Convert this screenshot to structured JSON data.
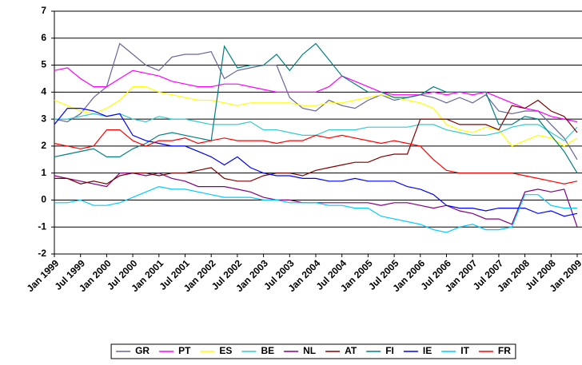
{
  "chart_data": {
    "type": "line",
    "categories": [
      "Jan 1999",
      null,
      "Jul 1999",
      null,
      "Jan 2000",
      null,
      "Jul 2000",
      null,
      "Jan 2001",
      null,
      "Jul 2001",
      null,
      "Jan 2002",
      null,
      "Jul 2002",
      null,
      "Jan 2003",
      null,
      "Jul 2003",
      null,
      "Jan 2004",
      null,
      "Jul 2004",
      null,
      "Jan 2005",
      null,
      "Jul 2005",
      null,
      "Jan 2006",
      null,
      "Jul 2006",
      null,
      "Jan 2007",
      null,
      "Jul 2007",
      null,
      "Jan 2008",
      null,
      "Jul 2008",
      null,
      "Jan 2009"
    ],
    "ylim": [
      -2,
      7
    ],
    "yticks": [
      -2,
      -1,
      0,
      1,
      2,
      3,
      4,
      5,
      6,
      7
    ],
    "grid": true,
    "legend": "bottom",
    "series": [
      {
        "name": "GR",
        "color": "#666699",
        "values": [
          3.0,
          2.9,
          3.2,
          3.8,
          4.2,
          5.8,
          5.4,
          5.0,
          4.8,
          5.3,
          5.4,
          5.4,
          5.5,
          4.5,
          4.8,
          4.9,
          5.0,
          5.0,
          3.8,
          3.4,
          3.3,
          3.7,
          3.5,
          3.4,
          3.7,
          3.9,
          3.7,
          3.8,
          3.9,
          3.8,
          3.6,
          3.8,
          3.6,
          3.9,
          3.3,
          3.2,
          3.3,
          3.3,
          2.8,
          2.3,
          1.5
        ]
      },
      {
        "name": "PT",
        "color": "#ff00ff",
        "values": [
          4.8,
          4.9,
          4.5,
          4.2,
          4.2,
          4.5,
          4.8,
          4.7,
          4.6,
          4.4,
          4.3,
          4.2,
          4.2,
          4.3,
          4.3,
          4.2,
          4.1,
          4.0,
          4.0,
          4.0,
          4.0,
          4.2,
          4.6,
          4.4,
          4.2,
          4.0,
          3.9,
          3.9,
          3.9,
          4.0,
          3.9,
          4.0,
          3.9,
          4.0,
          3.8,
          3.6,
          3.4,
          3.3,
          3.1,
          3.0,
          2.9
        ]
      },
      {
        "name": "ES",
        "color": "#ffff00",
        "values": [
          3.7,
          3.5,
          3.3,
          3.2,
          3.4,
          3.7,
          4.2,
          4.2,
          4.0,
          3.9,
          3.8,
          3.7,
          3.7,
          3.6,
          3.5,
          3.6,
          3.6,
          3.6,
          3.6,
          3.5,
          3.5,
          3.6,
          3.6,
          3.7,
          3.8,
          3.9,
          3.8,
          3.7,
          3.6,
          3.4,
          2.8,
          2.6,
          2.5,
          2.7,
          2.6,
          2.0,
          2.2,
          2.4,
          2.3,
          2.0,
          2.3
        ]
      },
      {
        "name": "BE",
        "color": "#33cccc",
        "values": [
          3.0,
          3.0,
          3.1,
          3.2,
          3.1,
          3.2,
          3.0,
          2.9,
          3.1,
          3.0,
          3.0,
          2.9,
          2.8,
          2.8,
          2.8,
          2.9,
          2.6,
          2.6,
          2.5,
          2.4,
          2.4,
          2.6,
          2.6,
          2.6,
          2.7,
          2.7,
          2.7,
          2.7,
          2.8,
          2.8,
          2.6,
          2.5,
          2.4,
          2.4,
          2.5,
          2.7,
          2.8,
          2.8,
          2.5,
          2.2,
          2.7
        ]
      },
      {
        "name": "NL",
        "color": "#800080",
        "values": [
          0.9,
          0.8,
          0.7,
          0.6,
          0.5,
          1.0,
          1.0,
          0.9,
          1.0,
          0.8,
          0.7,
          0.5,
          0.5,
          0.5,
          0.4,
          0.3,
          0.1,
          0.0,
          0.0,
          -0.1,
          -0.1,
          -0.1,
          -0.1,
          -0.1,
          -0.1,
          -0.2,
          -0.1,
          -0.1,
          -0.2,
          -0.3,
          -0.2,
          -0.4,
          -0.5,
          -0.7,
          -0.7,
          -0.9,
          0.3,
          0.4,
          0.3,
          0.4,
          -1.0
        ]
      },
      {
        "name": "AT",
        "color": "#800000",
        "values": [
          0.8,
          0.8,
          0.6,
          0.7,
          0.6,
          0.9,
          1.0,
          1.0,
          0.9,
          1.0,
          1.0,
          1.1,
          1.2,
          0.8,
          0.7,
          0.7,
          0.9,
          1.0,
          1.0,
          0.9,
          1.1,
          1.2,
          1.3,
          1.4,
          1.4,
          1.6,
          1.7,
          1.7,
          3.0,
          3.0,
          3.0,
          2.8,
          2.8,
          2.8,
          2.6,
          3.5,
          3.4,
          3.7,
          3.3,
          3.1,
          2.5
        ]
      },
      {
        "name": "FI",
        "color": "#008080",
        "values": [
          1.6,
          1.7,
          1.8,
          1.9,
          1.6,
          1.6,
          1.9,
          2.1,
          2.4,
          2.5,
          2.4,
          2.3,
          2.2,
          5.7,
          4.9,
          5.0,
          5.0,
          5.4,
          4.8,
          5.4,
          5.8,
          5.2,
          4.6,
          4.3,
          4.0,
          4.0,
          3.8,
          3.8,
          3.9,
          4.2,
          4.0,
          4.0,
          4.0,
          4.0,
          2.8,
          2.8,
          3.1,
          3.0,
          2.4,
          1.8,
          1.0
        ]
      },
      {
        "name": "IE",
        "color": "#0000ff",
        "values": [
          2.8,
          3.4,
          3.4,
          3.3,
          3.1,
          3.2,
          2.4,
          2.2,
          2.1,
          2.0,
          2.0,
          1.8,
          1.6,
          1.3,
          1.6,
          1.2,
          1.0,
          0.9,
          0.9,
          0.8,
          0.8,
          0.7,
          0.7,
          0.8,
          0.7,
          0.7,
          0.7,
          0.5,
          0.4,
          0.2,
          -0.2,
          -0.3,
          -0.3,
          -0.4,
          -0.3,
          -0.3,
          -0.3,
          -0.5,
          -0.4,
          -0.6,
          -0.5
        ]
      },
      {
        "name": "IT",
        "color": "#00ccff",
        "values": [
          -0.1,
          -0.1,
          0.0,
          -0.2,
          -0.2,
          -0.1,
          0.1,
          0.3,
          0.5,
          0.4,
          0.4,
          0.3,
          0.2,
          0.1,
          0.1,
          0.1,
          0.0,
          0.0,
          -0.1,
          -0.1,
          -0.1,
          -0.2,
          -0.2,
          -0.3,
          -0.3,
          -0.6,
          -0.7,
          -0.8,
          -0.9,
          -1.1,
          -1.2,
          -1.0,
          -0.9,
          -1.1,
          -1.1,
          -1.0,
          0.2,
          0.2,
          -0.2,
          -0.3,
          -0.3
        ]
      },
      {
        "name": "FR",
        "color": "#ff0000",
        "values": [
          2.1,
          2.0,
          1.9,
          2.0,
          2.6,
          2.6,
          2.2,
          2.0,
          2.2,
          2.2,
          2.3,
          2.1,
          2.2,
          2.3,
          2.2,
          2.2,
          2.2,
          2.1,
          2.2,
          2.2,
          2.4,
          2.3,
          2.4,
          2.3,
          2.2,
          2.1,
          2.2,
          2.1,
          2.0,
          1.5,
          1.1,
          1.0,
          1.0,
          1.0,
          1.0,
          1.0,
          0.9,
          0.8,
          0.7,
          0.6,
          0.7
        ]
      }
    ]
  }
}
